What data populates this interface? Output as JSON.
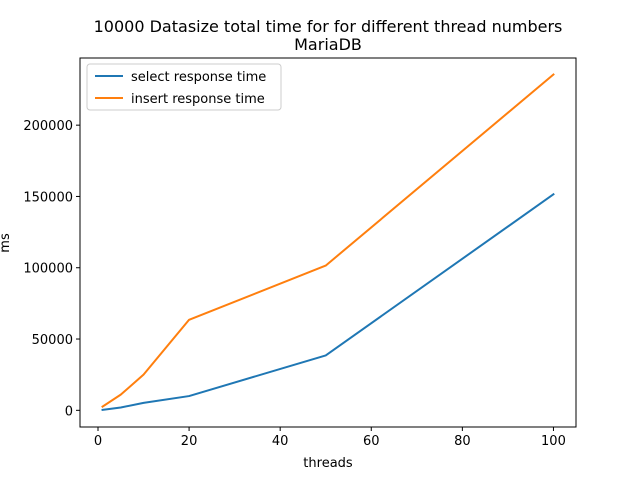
{
  "chart_data": {
    "type": "line",
    "title": "10000 Datasize total time for for different thread numbers",
    "subtitle": "MariaDB",
    "xlabel": "threads",
    "ylabel": "ms",
    "xlim": [
      -3.95,
      104.95
    ],
    "ylim": [
      -11700,
      247100
    ],
    "x_ticks": [
      0,
      20,
      40,
      60,
      80,
      100
    ],
    "x_tick_labels": [
      "0",
      "20",
      "40",
      "60",
      "80",
      "100"
    ],
    "y_ticks": [
      0,
      50000,
      100000,
      150000,
      200000
    ],
    "y_tick_labels": [
      "0",
      "50000",
      "100000",
      "150000",
      "200000"
    ],
    "grid": false,
    "legend_position": "upper-left",
    "series": [
      {
        "name": "select response time",
        "color": "#1f77b4",
        "x": [
          1,
          5,
          10,
          20,
          50,
          100
        ],
        "y": [
          300,
          2000,
          5200,
          10000,
          38500,
          151500
        ]
      },
      {
        "name": "insert response time",
        "color": "#ff7f0e",
        "x": [
          1,
          5,
          10,
          20,
          50,
          100
        ],
        "y": [
          2600,
          11000,
          25000,
          63500,
          101500,
          235500
        ]
      }
    ]
  }
}
